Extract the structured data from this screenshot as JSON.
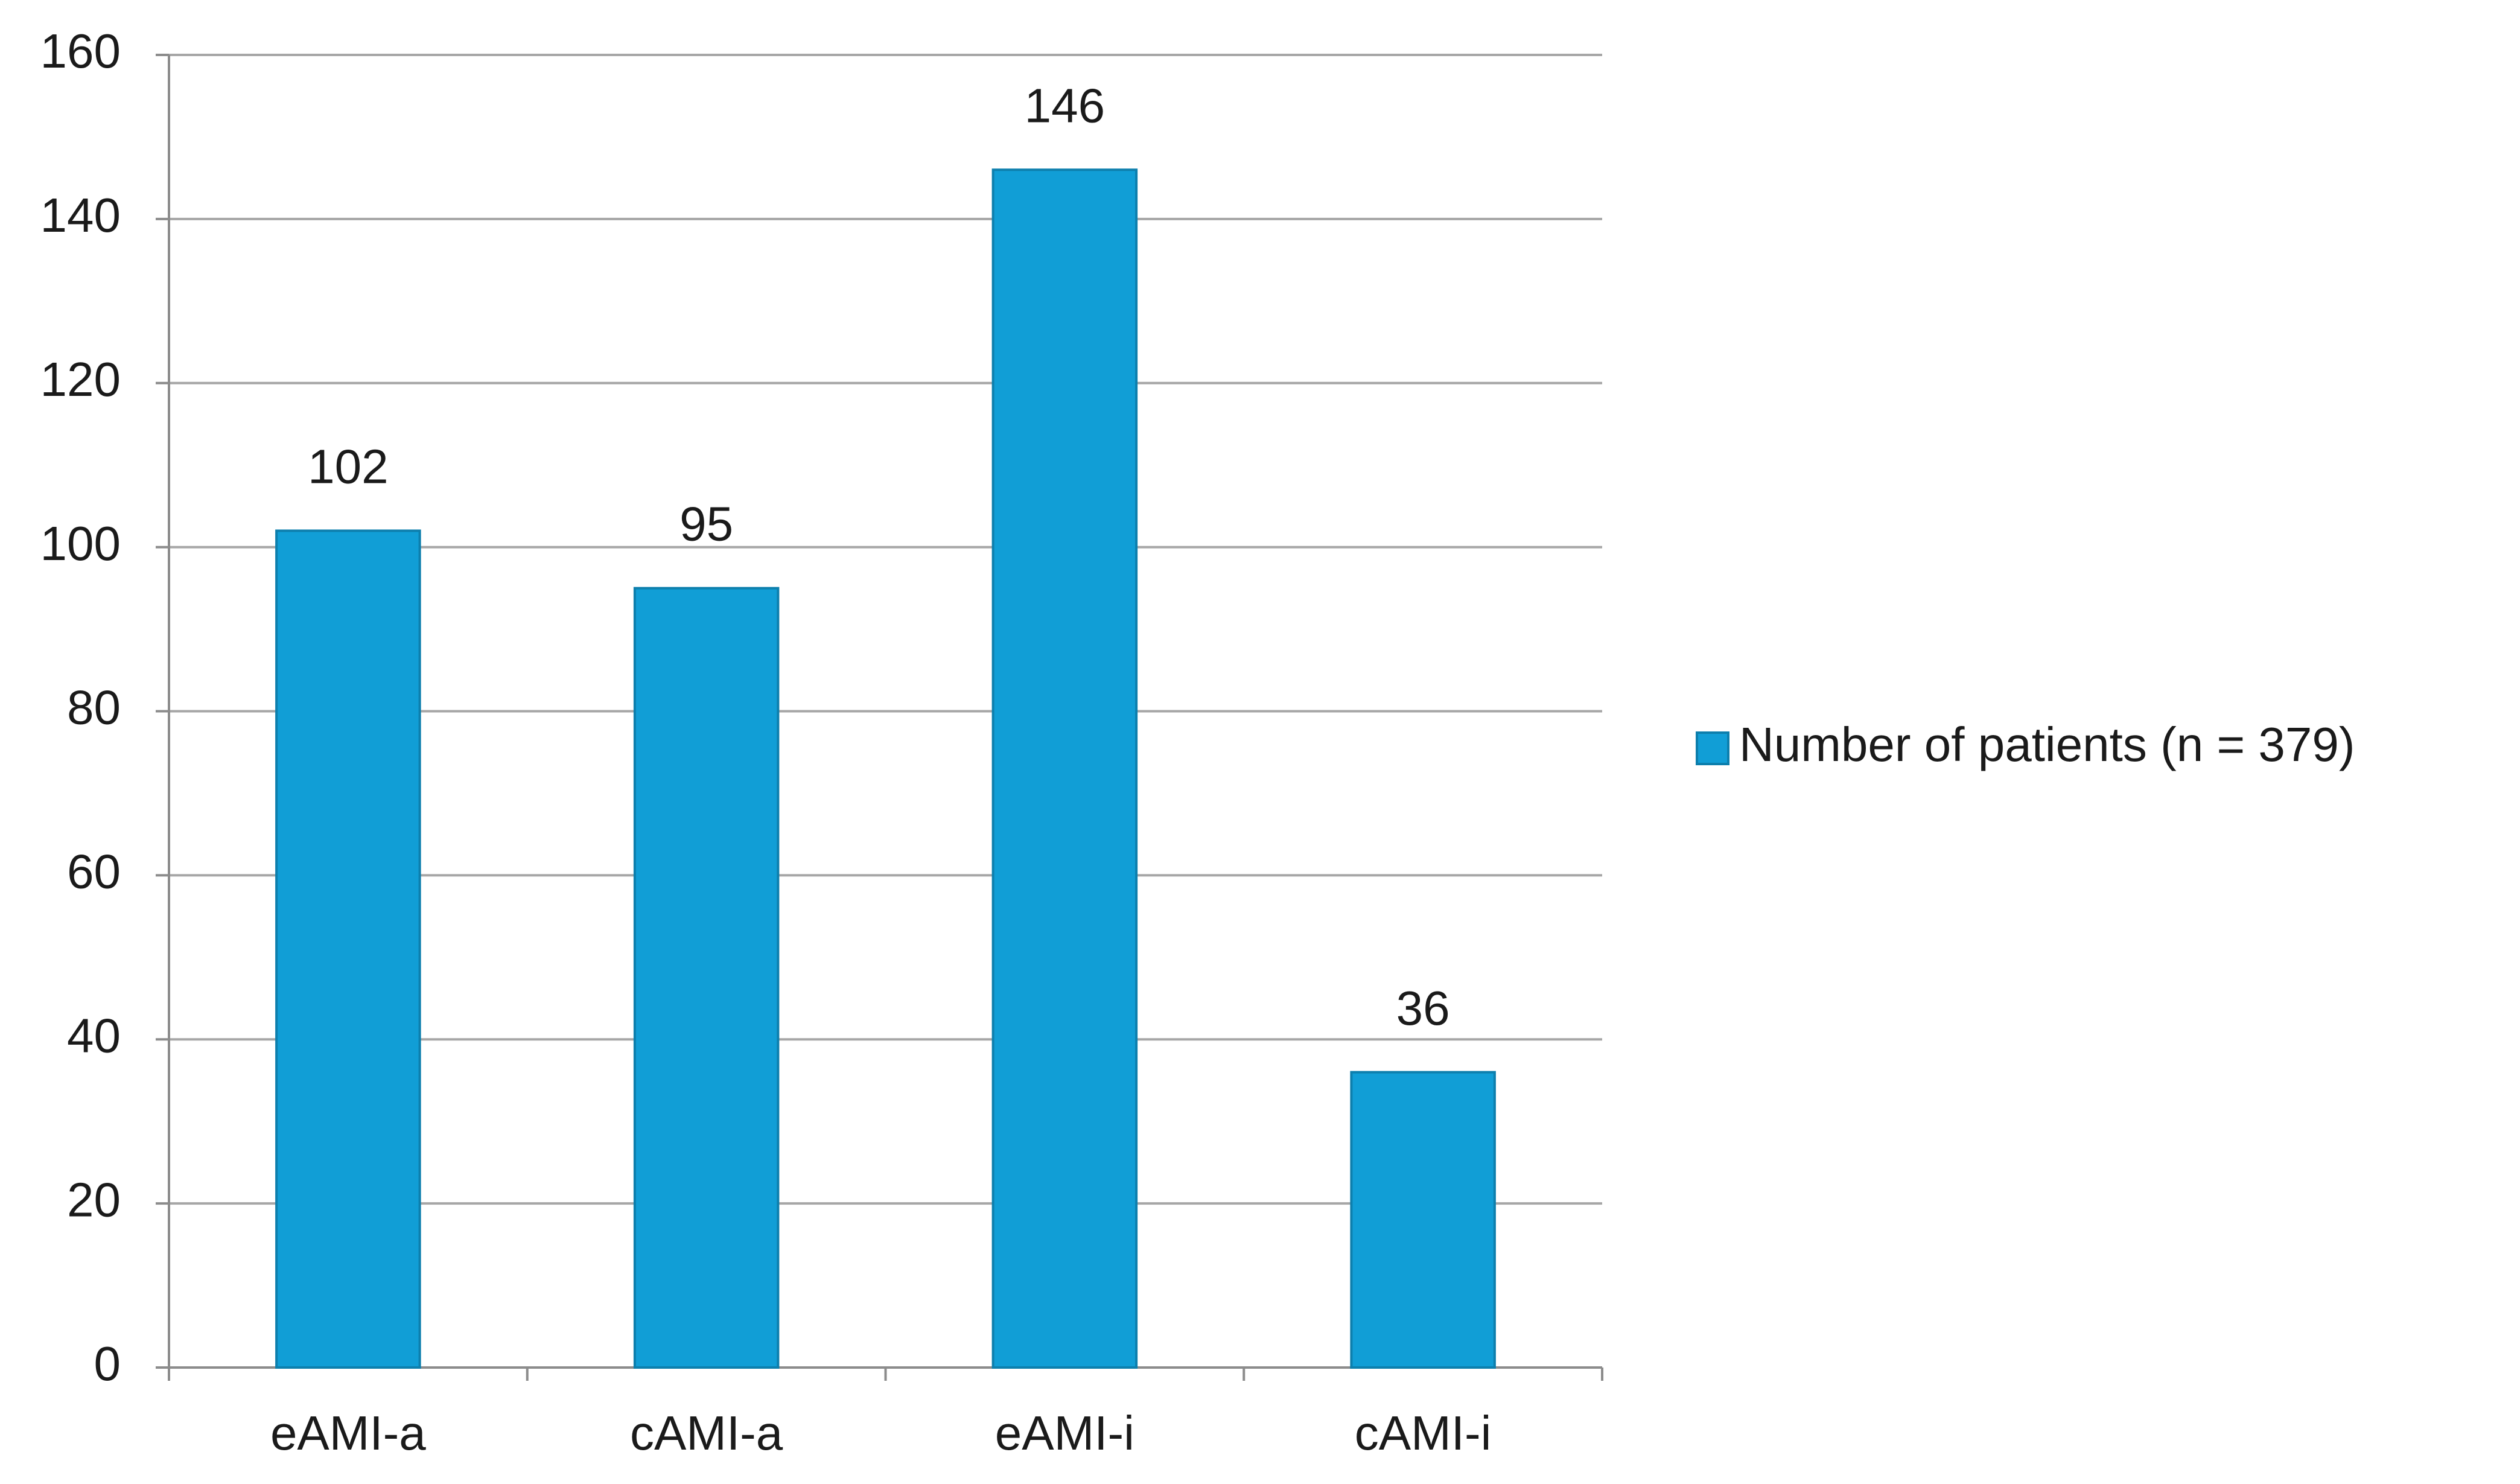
{
  "chart_data": {
    "type": "bar",
    "categories": [
      "eAMI-a",
      "cAMI-a",
      "eAMI-i",
      "cAMI-i"
    ],
    "series": [
      {
        "name": "Number of patients (n = 379)",
        "color": "#119ed6",
        "values": [
          102,
          95,
          146,
          36
        ]
      }
    ],
    "ylim": [
      0,
      160
    ],
    "yticks": [
      0,
      20,
      40,
      60,
      80,
      100,
      120,
      140,
      160
    ],
    "grid": true,
    "legend": "right"
  }
}
